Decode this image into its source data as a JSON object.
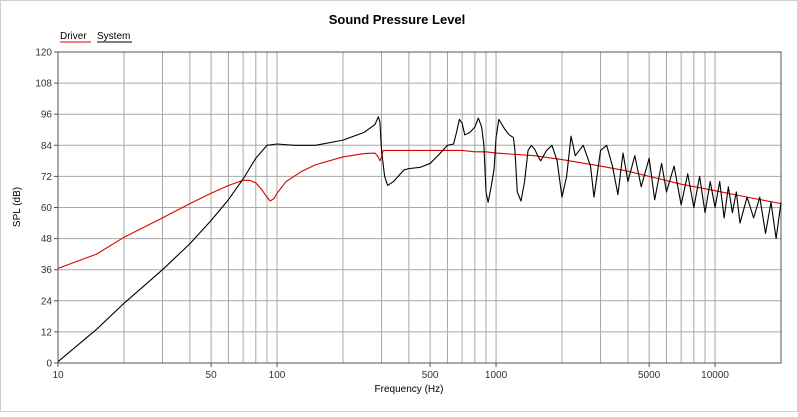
{
  "chart_data": {
    "type": "line",
    "title": "Sound Pressure Level",
    "xlabel": "Frequency (Hz)",
    "ylabel": "SPL (dB)",
    "x_scale": "log",
    "xlim": [
      10,
      20000
    ],
    "ylim": [
      0,
      120
    ],
    "grid": true,
    "legend_position": "top-left",
    "x_ticks": [
      {
        "v": 10,
        "label": "10"
      },
      {
        "v": 50,
        "label": "50"
      },
      {
        "v": 100,
        "label": "100"
      },
      {
        "v": 500,
        "label": "500"
      },
      {
        "v": 1000,
        "label": "1000"
      },
      {
        "v": 5000,
        "label": "5000"
      },
      {
        "v": 10000,
        "label": "10000"
      }
    ],
    "y_ticks": [
      0,
      12,
      24,
      36,
      48,
      60,
      72,
      84,
      96,
      108,
      120
    ],
    "series": [
      {
        "name": "Driver",
        "color": "#dd0000",
        "points": [
          [
            10,
            36.5
          ],
          [
            15,
            42
          ],
          [
            20,
            48.5
          ],
          [
            30,
            56
          ],
          [
            40,
            61.5
          ],
          [
            50,
            65.5
          ],
          [
            60,
            68.5
          ],
          [
            70,
            70.5
          ],
          [
            75,
            70.5
          ],
          [
            80,
            69.5
          ],
          [
            85,
            67
          ],
          [
            90,
            64
          ],
          [
            93,
            62.5
          ],
          [
            97,
            63.5
          ],
          [
            100,
            65.5
          ],
          [
            110,
            70
          ],
          [
            130,
            74
          ],
          [
            150,
            76.5
          ],
          [
            200,
            79.5
          ],
          [
            250,
            80.8
          ],
          [
            280,
            81
          ],
          [
            290,
            79.5
          ],
          [
            295,
            78
          ],
          [
            300,
            79.5
          ],
          [
            305,
            82
          ],
          [
            400,
            82
          ],
          [
            500,
            82
          ],
          [
            600,
            82
          ],
          [
            700,
            82
          ],
          [
            800,
            81.5
          ],
          [
            900,
            81.5
          ],
          [
            1000,
            81
          ],
          [
            1500,
            80
          ],
          [
            2000,
            78.5
          ],
          [
            3000,
            76
          ],
          [
            4000,
            74
          ],
          [
            5000,
            72
          ],
          [
            7000,
            69
          ],
          [
            10000,
            66.5
          ],
          [
            14000,
            64
          ],
          [
            20000,
            61.5
          ]
        ]
      },
      {
        "name": "System",
        "color": "#000000",
        "points": [
          [
            10,
            0.5
          ],
          [
            15,
            13
          ],
          [
            20,
            23
          ],
          [
            30,
            36
          ],
          [
            40,
            46
          ],
          [
            50,
            55
          ],
          [
            60,
            63
          ],
          [
            70,
            71
          ],
          [
            80,
            79
          ],
          [
            90,
            84
          ],
          [
            100,
            84.5
          ],
          [
            120,
            84
          ],
          [
            150,
            84
          ],
          [
            200,
            86
          ],
          [
            250,
            89
          ],
          [
            280,
            92
          ],
          [
            290,
            95
          ],
          [
            295,
            93
          ],
          [
            300,
            82
          ],
          [
            310,
            72
          ],
          [
            320,
            68.5
          ],
          [
            340,
            70
          ],
          [
            380,
            74.5
          ],
          [
            400,
            75
          ],
          [
            450,
            75.5
          ],
          [
            500,
            77
          ],
          [
            550,
            80.5
          ],
          [
            600,
            84
          ],
          [
            640,
            84.5
          ],
          [
            660,
            89
          ],
          [
            680,
            94
          ],
          [
            700,
            92.5
          ],
          [
            720,
            88
          ],
          [
            760,
            89
          ],
          [
            800,
            91
          ],
          [
            830,
            94.5
          ],
          [
            860,
            91
          ],
          [
            880,
            84
          ],
          [
            900,
            66
          ],
          [
            920,
            62
          ],
          [
            950,
            68
          ],
          [
            980,
            75
          ],
          [
            1000,
            87
          ],
          [
            1030,
            94
          ],
          [
            1100,
            90
          ],
          [
            1150,
            88
          ],
          [
            1200,
            87
          ],
          [
            1220,
            82
          ],
          [
            1250,
            66
          ],
          [
            1300,
            62.5
          ],
          [
            1350,
            70
          ],
          [
            1400,
            82
          ],
          [
            1450,
            84
          ],
          [
            1500,
            82.5
          ],
          [
            1550,
            80
          ],
          [
            1600,
            78
          ],
          [
            1700,
            82
          ],
          [
            1800,
            84
          ],
          [
            1900,
            78
          ],
          [
            2000,
            64
          ],
          [
            2100,
            72
          ],
          [
            2200,
            87.5
          ],
          [
            2300,
            80
          ],
          [
            2500,
            84
          ],
          [
            2700,
            76
          ],
          [
            2800,
            64
          ],
          [
            3000,
            82
          ],
          [
            3200,
            84
          ],
          [
            3400,
            76
          ],
          [
            3600,
            65
          ],
          [
            3800,
            81
          ],
          [
            4000,
            70
          ],
          [
            4300,
            80
          ],
          [
            4600,
            68
          ],
          [
            5000,
            79
          ],
          [
            5300,
            63
          ],
          [
            5700,
            77
          ],
          [
            6000,
            66
          ],
          [
            6500,
            76
          ],
          [
            7000,
            61
          ],
          [
            7500,
            73
          ],
          [
            8000,
            60
          ],
          [
            8500,
            72
          ],
          [
            9000,
            58
          ],
          [
            9500,
            70
          ],
          [
            10000,
            60
          ],
          [
            10500,
            70
          ],
          [
            11000,
            56
          ],
          [
            11500,
            68
          ],
          [
            12000,
            58
          ],
          [
            12500,
            66
          ],
          [
            13000,
            54
          ],
          [
            14000,
            64
          ],
          [
            15000,
            56
          ],
          [
            16000,
            64
          ],
          [
            17000,
            50
          ],
          [
            18000,
            62
          ],
          [
            19000,
            48
          ],
          [
            20000,
            62
          ]
        ]
      }
    ]
  }
}
